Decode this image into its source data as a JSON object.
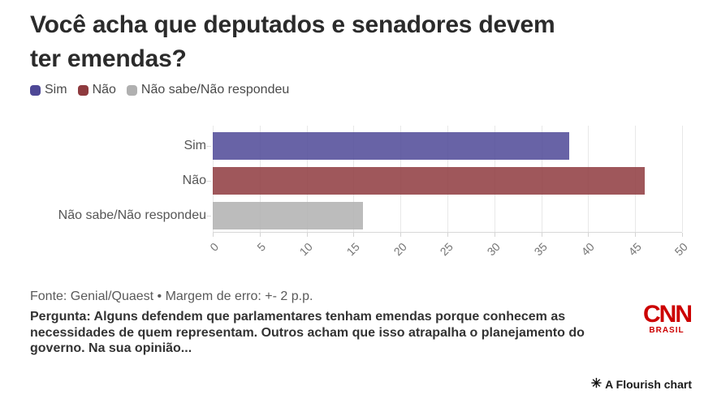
{
  "header": {
    "title": "Você acha que deputados e senadores devem ter emendas?",
    "title_lines": [
      "Você acha que deputados e senadores devem",
      "ter emendas?"
    ]
  },
  "chart_data": {
    "type": "bar",
    "orientation": "horizontal",
    "title": "Você acha que deputados e senadores devem ter emendas?",
    "categories": [
      "Sim",
      "Não",
      "Não sabe/Não respondeu"
    ],
    "values": [
      38,
      46,
      16
    ],
    "colors": [
      "#4E4896",
      "#8E3A3E",
      "#B0B0B0"
    ],
    "bar_opacity": 0.85,
    "xlim": [
      0,
      50
    ],
    "x_ticks": [
      0,
      5,
      10,
      15,
      20,
      25,
      30,
      35,
      40,
      45,
      50
    ],
    "grid": true,
    "gridline_color": "#e8e8e8",
    "tick_label_rotation": -45,
    "legend_position": "top",
    "legend": [
      {
        "label": "Sim",
        "color": "#4E4896"
      },
      {
        "label": "Não",
        "color": "#8E3A3E"
      },
      {
        "label": "Não sabe/Não respondeu",
        "color": "#B0B0B0"
      }
    ]
  },
  "footer": {
    "source": "Fonte: Genial/Quaest • Margem de erro: +- 2 p.p.",
    "question": "Pergunta: Alguns defendem que parlamentares tenham emendas porque conhecem as necessidades de quem representam. Outros acham que isso atrapalha o planejamento do governo. Na sua opinião...",
    "brand": {
      "name": "CNN",
      "sub": "BRASIL",
      "color": "#CC0000"
    },
    "attribution": {
      "icon_glyph": "✳",
      "label": "A Flourish chart"
    }
  }
}
